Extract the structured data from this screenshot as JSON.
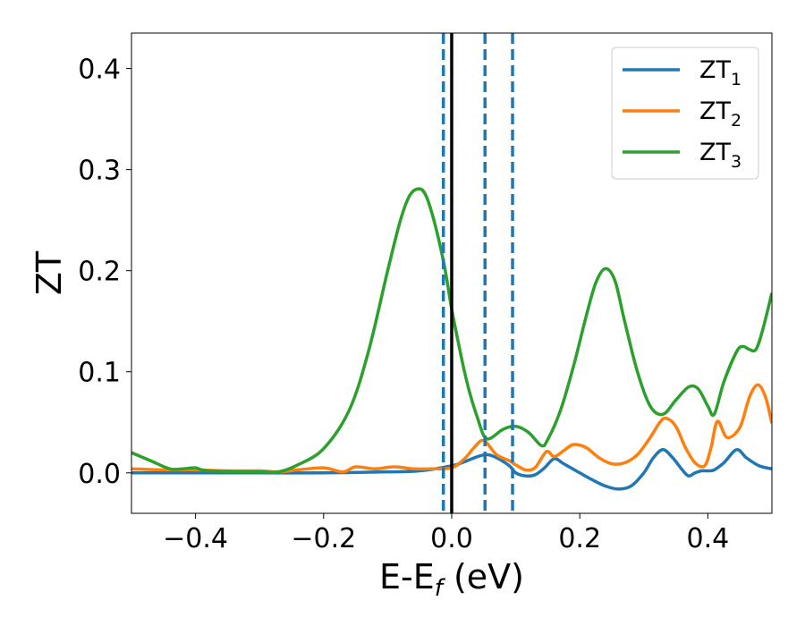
{
  "chart_data": {
    "type": "line",
    "title": "",
    "xlabel_main": "E-E",
    "xlabel_sub": "f",
    "xlabel_unit": " (eV)",
    "ylabel": "ZT",
    "xlim": [
      -0.5,
      0.5
    ],
    "ylim": [
      -0.04,
      0.435
    ],
    "xticks": [
      -0.4,
      -0.2,
      0.0,
      0.2,
      0.4
    ],
    "xtick_labels": [
      "−0.4",
      "−0.2",
      "0.0",
      "0.2",
      "0.4"
    ],
    "yticks": [
      0.0,
      0.1,
      0.2,
      0.3,
      0.4
    ],
    "ytick_labels": [
      "0.0",
      "0.1",
      "0.2",
      "0.3",
      "0.4"
    ],
    "grid": false,
    "legend_position": "top-right",
    "fermi_line_x": 0.0,
    "dashed_lines_x": [
      -0.013,
      0.052,
      0.095
    ],
    "series": [
      {
        "name": "ZT",
        "name_sub": "1",
        "color": "#1f77b4",
        "x": [
          -0.5,
          -0.4,
          -0.3,
          -0.2,
          -0.1,
          -0.05,
          0.0,
          0.02,
          0.04,
          0.055,
          0.07,
          0.09,
          0.1,
          0.115,
          0.13,
          0.145,
          0.16,
          0.175,
          0.2,
          0.22,
          0.24,
          0.26,
          0.28,
          0.3,
          0.315,
          0.33,
          0.345,
          0.36,
          0.37,
          0.38,
          0.39,
          0.4,
          0.41,
          0.425,
          0.445,
          0.46,
          0.48,
          0.5
        ],
        "y": [
          0.0,
          0.0,
          0.0,
          0.0,
          0.001,
          0.002,
          0.007,
          0.011,
          0.016,
          0.018,
          0.015,
          0.007,
          0.0,
          -0.003,
          -0.002,
          0.005,
          0.014,
          0.009,
          0.0,
          -0.007,
          -0.013,
          -0.016,
          -0.013,
          0.0,
          0.015,
          0.023,
          0.015,
          0.003,
          -0.003,
          0.0,
          0.002,
          0.002,
          0.003,
          0.01,
          0.023,
          0.015,
          0.007,
          0.004
        ]
      },
      {
        "name": "ZT",
        "name_sub": "2",
        "color": "#ff7f0e",
        "x": [
          -0.5,
          -0.45,
          -0.4,
          -0.35,
          -0.3,
          -0.27,
          -0.24,
          -0.2,
          -0.17,
          -0.15,
          -0.12,
          -0.09,
          -0.06,
          -0.03,
          0.0,
          0.02,
          0.035,
          0.05,
          0.07,
          0.09,
          0.1,
          0.115,
          0.13,
          0.148,
          0.16,
          0.175,
          0.19,
          0.21,
          0.23,
          0.25,
          0.27,
          0.29,
          0.31,
          0.325,
          0.335,
          0.35,
          0.365,
          0.38,
          0.395,
          0.405,
          0.415,
          0.43,
          0.45,
          0.465,
          0.478,
          0.49,
          0.5
        ],
        "y": [
          0.004,
          0.003,
          0.003,
          0.002,
          0.002,
          0.001,
          0.003,
          0.005,
          0.001,
          0.006,
          0.004,
          0.006,
          0.004,
          0.004,
          0.005,
          0.014,
          0.025,
          0.032,
          0.018,
          0.012,
          0.008,
          0.003,
          0.005,
          0.021,
          0.016,
          0.022,
          0.028,
          0.025,
          0.015,
          0.009,
          0.01,
          0.018,
          0.035,
          0.05,
          0.054,
          0.046,
          0.025,
          0.01,
          0.007,
          0.025,
          0.051,
          0.035,
          0.045,
          0.075,
          0.087,
          0.075,
          0.049
        ]
      },
      {
        "name": "ZT",
        "name_sub": "3",
        "color": "#2ca02c",
        "x": [
          -0.5,
          -0.47,
          -0.44,
          -0.42,
          -0.4,
          -0.38,
          -0.3,
          -0.27,
          -0.24,
          -0.2,
          -0.16,
          -0.13,
          -0.1,
          -0.08,
          -0.065,
          -0.05,
          -0.04,
          -0.03,
          -0.02,
          -0.01,
          0.0,
          0.01,
          0.02,
          0.03,
          0.04,
          0.05,
          0.06,
          0.08,
          0.1,
          0.12,
          0.14,
          0.15,
          0.17,
          0.19,
          0.21,
          0.225,
          0.24,
          0.255,
          0.27,
          0.29,
          0.31,
          0.33,
          0.35,
          0.37,
          0.385,
          0.4,
          0.41,
          0.425,
          0.445,
          0.455,
          0.465,
          0.475,
          0.485,
          0.5
        ],
        "y": [
          0.02,
          0.012,
          0.004,
          0.004,
          0.005,
          0.002,
          0.001,
          0.001,
          0.008,
          0.024,
          0.062,
          0.12,
          0.2,
          0.25,
          0.275,
          0.281,
          0.274,
          0.255,
          0.23,
          0.2,
          0.162,
          0.13,
          0.1,
          0.075,
          0.055,
          0.037,
          0.034,
          0.043,
          0.046,
          0.04,
          0.027,
          0.033,
          0.062,
          0.105,
          0.155,
          0.188,
          0.202,
          0.19,
          0.15,
          0.1,
          0.066,
          0.058,
          0.072,
          0.085,
          0.083,
          0.066,
          0.058,
          0.09,
          0.12,
          0.125,
          0.122,
          0.122,
          0.14,
          0.178
        ]
      }
    ]
  }
}
